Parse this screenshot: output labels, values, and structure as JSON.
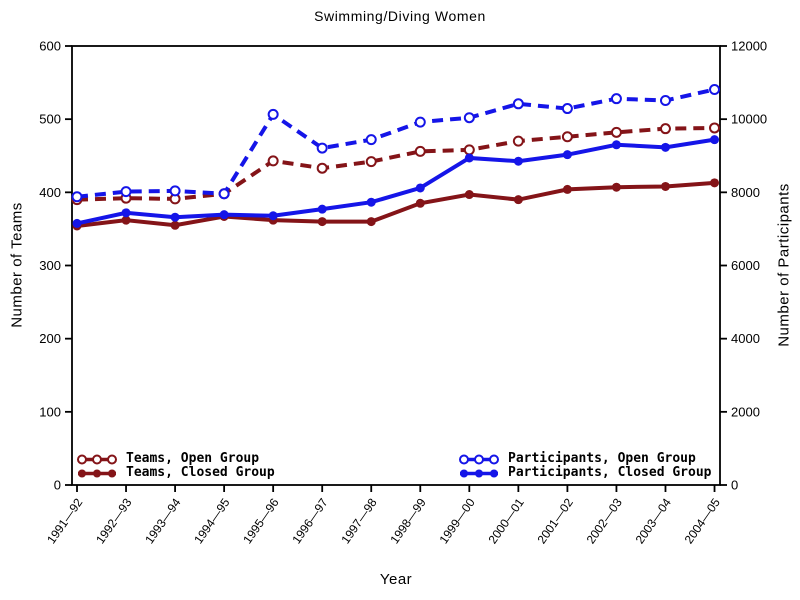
{
  "title": "Swimming/Diving Women",
  "chart_data": {
    "type": "line",
    "title": "Swimming/Diving Women",
    "xlabel": "Year",
    "ylabel_left": "Number of Teams",
    "ylabel_right": "Number of Participants",
    "categories": [
      "1991—92",
      "1992—93",
      "1993—94",
      "1994—95",
      "1995—96",
      "1996—97",
      "1997—98",
      "1998—99",
      "1999—00",
      "2000—01",
      "2001—02",
      "2002—03",
      "2003—04",
      "2004—05"
    ],
    "left_axis": {
      "min": 0,
      "max": 600,
      "ticks": [
        "0",
        "100",
        "200",
        "300",
        "400",
        "500",
        "600"
      ]
    },
    "right_axis": {
      "min": 0,
      "max": 12000,
      "ticks": [
        "0",
        "2000",
        "4000",
        "6000",
        "8000",
        "10000",
        "12000"
      ]
    },
    "grid": false,
    "legend_position": "bottom-inside",
    "series": [
      {
        "name": "Teams, Open Group",
        "axis": "left",
        "color": "#841418",
        "line": "dashed",
        "marker": "open",
        "values": [
          390,
          392,
          391,
          398,
          443,
          433,
          442,
          456,
          458,
          470,
          476,
          482,
          487,
          488
        ]
      },
      {
        "name": "Teams, Closed Group",
        "axis": "left",
        "color": "#841418",
        "line": "solid",
        "marker": "filled",
        "values": [
          354,
          362,
          355,
          367,
          362,
          360,
          360,
          385,
          397,
          390,
          404,
          407,
          408,
          413
        ]
      },
      {
        "name": "Participants, Open Group",
        "axis": "right",
        "color": "#1515E8",
        "line": "dashed",
        "marker": "open",
        "values": [
          7880,
          8020,
          8040,
          7960,
          10130,
          9210,
          9440,
          9920,
          10040,
          10420,
          10290,
          10560,
          10510,
          10810
        ]
      },
      {
        "name": "Participants, Closed Group",
        "axis": "right",
        "color": "#1515E8",
        "line": "solid",
        "marker": "filled",
        "values": [
          7150,
          7440,
          7320,
          7390,
          7360,
          7540,
          7730,
          8120,
          8940,
          8850,
          9030,
          9300,
          9230,
          9440
        ]
      }
    ]
  }
}
